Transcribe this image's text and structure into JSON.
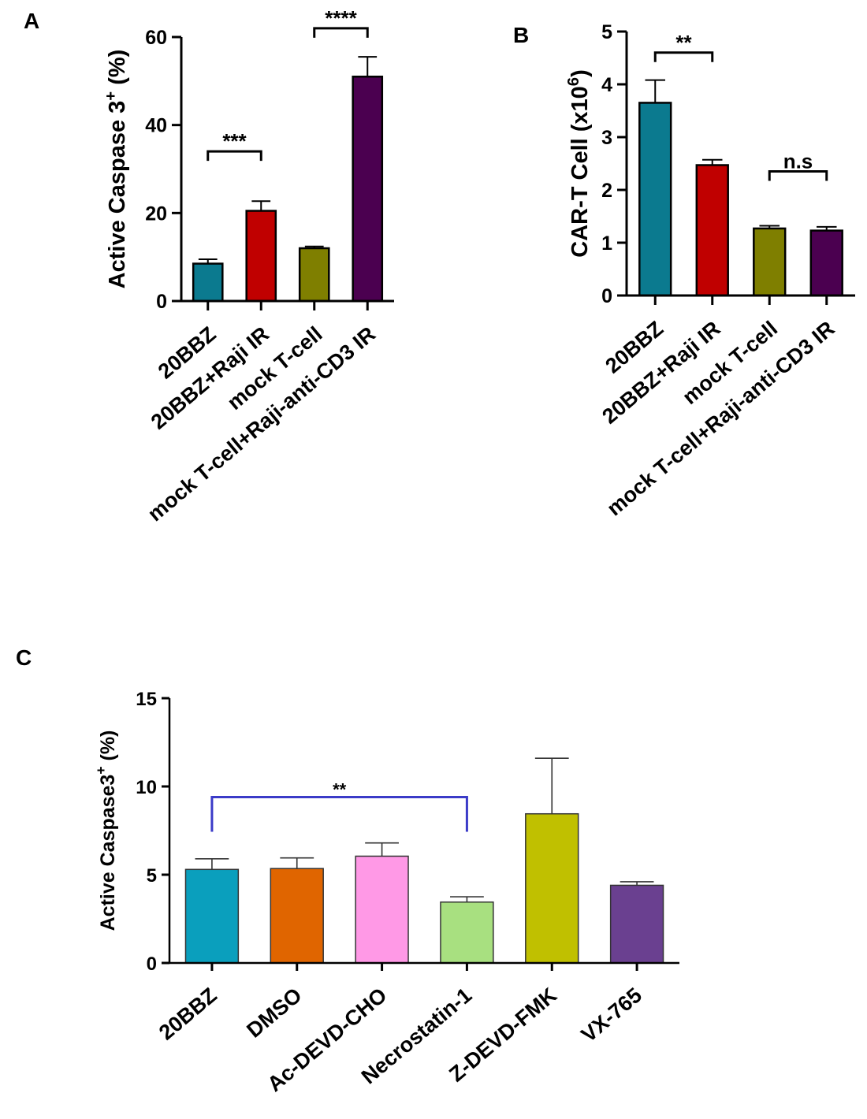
{
  "chart_data": [
    {
      "panel": "A",
      "type": "bar",
      "ylabel": "Active Caspase 3",
      "ylabel_sup": "+",
      "ylabel_suffix": " (%)",
      "ylim": [
        0,
        60
      ],
      "yticks": [
        0,
        20,
        40,
        60
      ],
      "categories": [
        "20BBZ",
        "20BBZ+Raji IR",
        "mock T-cell",
        "mock T-cell+Raji-anti-CD3 IR"
      ],
      "values": [
        8.5,
        20.5,
        12.0,
        51.0
      ],
      "errors": [
        1.0,
        2.2,
        0.4,
        4.5
      ],
      "colors": [
        "#0b7a8f",
        "#c00000",
        "#7f7f00",
        "#4b0050"
      ],
      "significance": [
        {
          "from": 0,
          "to": 1,
          "y": 34,
          "label": "***"
        },
        {
          "from": 2,
          "to": 3,
          "y": 62,
          "label": "****"
        }
      ]
    },
    {
      "panel": "B",
      "type": "bar",
      "ylabel": "CAR-T Cell (x10",
      "ylabel_sup": "6",
      "ylabel_suffix": ")",
      "ylim": [
        0,
        5
      ],
      "yticks": [
        0,
        1,
        2,
        3,
        4,
        5
      ],
      "categories": [
        "20BBZ",
        "20BBZ+Raji IR",
        "mock T-cell",
        "mock T-cell+Raji-anti-CD3 IR"
      ],
      "values": [
        3.65,
        2.47,
        1.27,
        1.23
      ],
      "errors": [
        0.43,
        0.1,
        0.05,
        0.07
      ],
      "colors": [
        "#0b7a8f",
        "#c00000",
        "#7f7f00",
        "#4b0050"
      ],
      "significance": [
        {
          "from": 0,
          "to": 1,
          "y": 4.6,
          "label": "**"
        },
        {
          "from": 2,
          "to": 3,
          "y": 2.35,
          "label": "n.s"
        }
      ]
    },
    {
      "panel": "C",
      "type": "bar",
      "ylabel": "Active Caspase3",
      "ylabel_sup": "+",
      "ylabel_suffix": " (%)",
      "ylim": [
        0,
        15
      ],
      "yticks": [
        0,
        5,
        10,
        15
      ],
      "categories": [
        "20BBZ",
        "DMSO",
        "Ac-DEVD-CHO",
        "Necrostatin-1",
        "Z-DEVD-FMK",
        "VX-765"
      ],
      "values": [
        5.3,
        5.35,
        6.05,
        3.45,
        8.45,
        4.4
      ],
      "errors": [
        0.6,
        0.6,
        0.75,
        0.3,
        3.15,
        0.2
      ],
      "colors": [
        "#0a9fbd",
        "#e06500",
        "#ff99e6",
        "#a8e080",
        "#c0c000",
        "#6a4090"
      ],
      "significance": [
        {
          "from": 0,
          "to": 3,
          "y": 9.4,
          "label": "**",
          "color": "#3b3bc8"
        }
      ]
    }
  ]
}
